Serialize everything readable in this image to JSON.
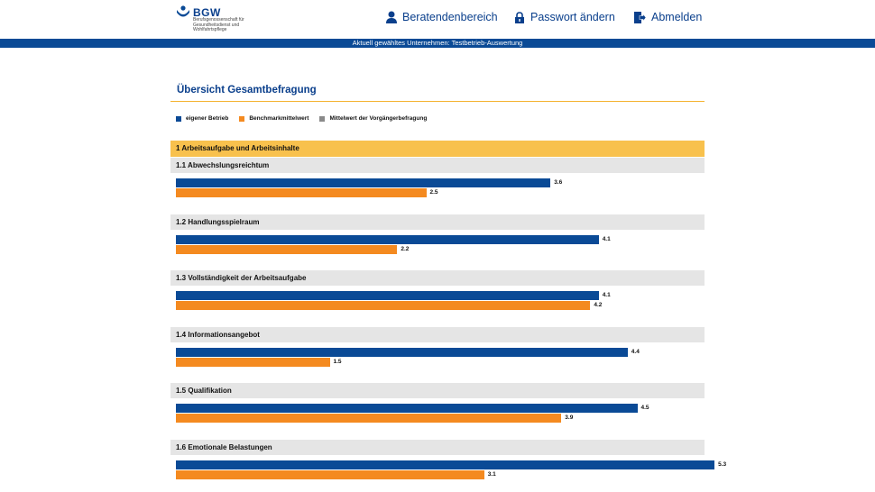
{
  "header": {
    "logo_name": "BGW",
    "logo_sub": "Berufsgenossenschaft für Gesundheitsdienst und Wohlfahrtspflege",
    "nav": [
      {
        "label": "Beratendenbereich",
        "icon": "user-icon"
      },
      {
        "label": "Passwort ändern",
        "icon": "lock-icon"
      },
      {
        "label": "Abmelden",
        "icon": "logout-icon"
      }
    ],
    "banner": "Aktuell gewähltes Unternehmen: Testbetrieb-Auswertung"
  },
  "page_title": "Übersicht Gesamtbefragung",
  "legend": [
    {
      "label": "eigener Betrieb",
      "color": "#0a4a96"
    },
    {
      "label": "Benchmarkmittelwert",
      "color": "#f48a20"
    },
    {
      "label": "Mittelwert der Vorgängerbefragung",
      "color": "#8a8a8a"
    }
  ],
  "section_title": "1 Arbeitsaufgabe und Arbeitsinhalte",
  "chart_data": {
    "type": "bar",
    "orientation": "horizontal",
    "categories": [
      "1.1 Abwechslungsreichtum",
      "1.2 Handlungsspielraum",
      "1.3 Vollständigkeit der Arbeitsaufgabe",
      "1.4 Informationsangebot",
      "1.5 Qualifikation",
      "1.6 Emotionale Belastungen"
    ],
    "series": [
      {
        "name": "eigener Betrieb",
        "values": [
          3.6,
          4.1,
          4.1,
          4.4,
          4.5,
          5.3
        ],
        "labels": [
          "3.6",
          "4.1",
          "4.1",
          "4.4",
          "4.5",
          "5.3"
        ],
        "color": "#0a4a96"
      },
      {
        "name": "Benchmarkmittelwert",
        "values": [
          2.5,
          2.2,
          4.2,
          1.5,
          3.9,
          3.1
        ],
        "labels": [
          "2.5",
          "2.2",
          "4.2",
          "1.5",
          "3.9",
          "3.1"
        ],
        "color": "#f48a20"
      }
    ],
    "xlim": [
      0,
      6
    ]
  }
}
